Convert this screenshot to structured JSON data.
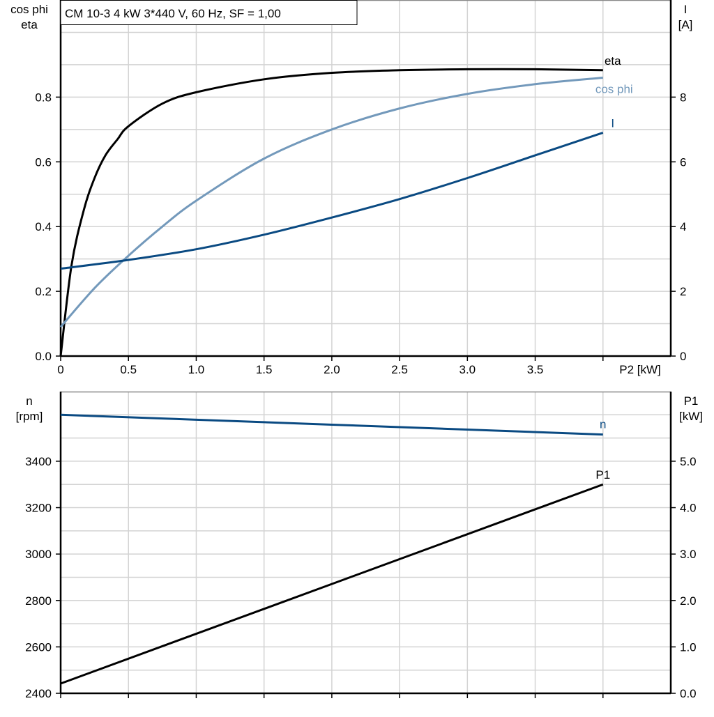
{
  "chart_data": [
    {
      "type": "line",
      "title": "CM 10-3   4 kW   3*440 V, 60 Hz, SF = 1,00",
      "xlabel": "P2 [kW]",
      "ylabel_left": [
        "cos phi",
        "eta"
      ],
      "ylabel_right": [
        "I",
        "[A]"
      ],
      "xlim": [
        0,
        4.5
      ],
      "ylim_left": [
        0,
        1.1
      ],
      "ylim_right": [
        0,
        11
      ],
      "x_ticks": [
        0,
        0.5,
        1.0,
        1.5,
        2.0,
        2.5,
        3.0,
        3.5,
        4.0
      ],
      "x_tick_labels": [
        "0",
        "0.5",
        "1.0",
        "1.5",
        "2.0",
        "2.5",
        "3.0",
        "3.5",
        ""
      ],
      "y_left_ticks": [
        "0.0",
        "0.2",
        "0.4",
        "0.6",
        "0.8"
      ],
      "y_right_ticks": [
        "0",
        "2",
        "4",
        "6",
        "8"
      ],
      "grid": true,
      "series": [
        {
          "name": "eta",
          "axis": "left",
          "color": "#000000",
          "x": [
            0,
            0.08,
            0.17,
            0.25,
            0.33,
            0.42,
            0.5,
            0.75,
            1.0,
            1.5,
            2.0,
            2.5,
            3.0,
            3.5,
            4.0
          ],
          "y": [
            0,
            0.28,
            0.45,
            0.55,
            0.62,
            0.67,
            0.71,
            0.78,
            0.815,
            0.855,
            0.875,
            0.883,
            0.886,
            0.886,
            0.883
          ]
        },
        {
          "name": "cos phi",
          "axis": "left",
          "color": "#7399bb",
          "x": [
            0,
            0.25,
            0.5,
            0.75,
            1.0,
            1.5,
            2.0,
            2.5,
            3.0,
            3.5,
            4.0
          ],
          "y": [
            0.09,
            0.21,
            0.31,
            0.4,
            0.48,
            0.61,
            0.7,
            0.765,
            0.81,
            0.84,
            0.86
          ]
        },
        {
          "name": "I",
          "axis": "right",
          "color": "#0a4a82",
          "x": [
            0,
            0.5,
            1.0,
            1.5,
            2.0,
            2.5,
            3.0,
            3.5,
            4.0
          ],
          "y": [
            2.7,
            2.97,
            3.3,
            3.75,
            4.28,
            4.85,
            5.5,
            6.2,
            6.9
          ]
        }
      ]
    },
    {
      "type": "line",
      "ylabel_left": [
        "n",
        "[rpm]"
      ],
      "ylabel_right": [
        "P1",
        "[kW]"
      ],
      "xlim": [
        0,
        4.5
      ],
      "ylim_left": [
        2400,
        3700
      ],
      "ylim_right": [
        0,
        6.5
      ],
      "y_left_ticks": [
        "2400",
        "2600",
        "2800",
        "3000",
        "3200",
        "3400"
      ],
      "y_right_ticks": [
        "0.0",
        "1.0",
        "2.0",
        "3.0",
        "4.0",
        "5.0"
      ],
      "grid": true,
      "series": [
        {
          "name": "n",
          "axis": "left",
          "color": "#0a4a82",
          "x": [
            0,
            4.0
          ],
          "y": [
            3600,
            3515
          ]
        },
        {
          "name": "P1",
          "axis": "right",
          "color": "#000000",
          "x": [
            0,
            4.0
          ],
          "y": [
            0.21,
            4.5
          ]
        }
      ]
    }
  ]
}
